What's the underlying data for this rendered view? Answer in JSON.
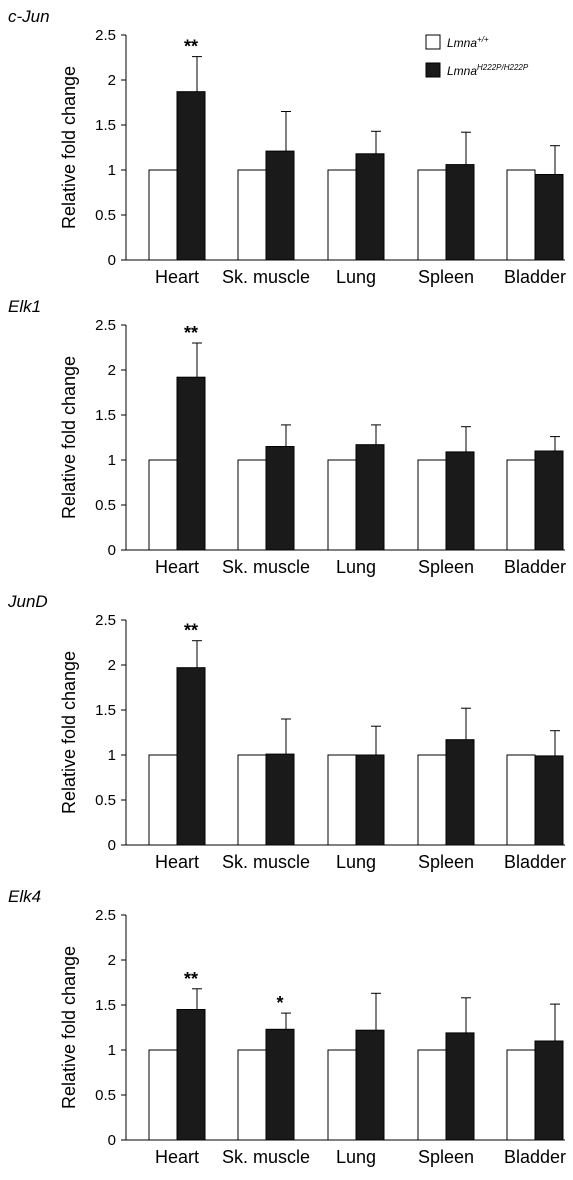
{
  "legend": {
    "series": [
      {
        "base": "Lmna",
        "sup": "+/+",
        "color": "#ffffff"
      },
      {
        "base": "Lmna",
        "sup": "H222P/H222P",
        "color": "#1a1a1a"
      }
    ]
  },
  "chart_data": [
    {
      "type": "bar",
      "title": "c-Jun",
      "ylabel": "Relative fold change",
      "ylim": [
        0,
        2.5
      ],
      "yticks": [
        "0",
        "0.5",
        "1",
        "1.5",
        "2",
        "2.5"
      ],
      "categories": [
        "Heart",
        "Sk. muscle",
        "Lung",
        "Spleen",
        "Bladder"
      ],
      "series": [
        {
          "name": "Lmna+/+",
          "values": [
            1,
            1,
            1,
            1,
            1
          ]
        },
        {
          "name": "LmnaH222P/H222P",
          "values": [
            1.87,
            1.21,
            1.18,
            1.06,
            0.95
          ],
          "errors": [
            0.39,
            0.44,
            0.25,
            0.36,
            0.32
          ]
        }
      ],
      "significance": [
        "**",
        "",
        "",
        "",
        ""
      ]
    },
    {
      "type": "bar",
      "title": "Elk1",
      "ylabel": "Relative fold change",
      "ylim": [
        0,
        2.5
      ],
      "yticks": [
        "0",
        "0.5",
        "1",
        "1.5",
        "2",
        "2.5"
      ],
      "categories": [
        "Heart",
        "Sk. muscle",
        "Lung",
        "Spleen",
        "Bladder"
      ],
      "series": [
        {
          "name": "Lmna+/+",
          "values": [
            1,
            1,
            1,
            1,
            1
          ]
        },
        {
          "name": "LmnaH222P/H222P",
          "values": [
            1.92,
            1.15,
            1.17,
            1.09,
            1.1
          ],
          "errors": [
            0.38,
            0.24,
            0.22,
            0.28,
            0.16
          ]
        }
      ],
      "significance": [
        "**",
        "",
        "",
        "",
        ""
      ]
    },
    {
      "type": "bar",
      "title": "JunD",
      "ylabel": "Relative fold change",
      "ylim": [
        0,
        2.5
      ],
      "yticks": [
        "0",
        "0.5",
        "1",
        "1.5",
        "2",
        "2.5"
      ],
      "categories": [
        "Heart",
        "Sk. muscle",
        "Lung",
        "Spleen",
        "Bladder"
      ],
      "series": [
        {
          "name": "Lmna+/+",
          "values": [
            1,
            1,
            1,
            1,
            1
          ]
        },
        {
          "name": "LmnaH222P/H222P",
          "values": [
            1.97,
            1.01,
            1.0,
            1.17,
            0.99
          ],
          "errors": [
            0.3,
            0.39,
            0.32,
            0.35,
            0.28
          ]
        }
      ],
      "significance": [
        "**",
        "",
        "",
        "",
        ""
      ]
    },
    {
      "type": "bar",
      "title": "Elk4",
      "ylabel": "Relative fold change",
      "ylim": [
        0,
        2.5
      ],
      "yticks": [
        "0",
        "0.5",
        "1",
        "1.5",
        "2",
        "2.5"
      ],
      "categories": [
        "Heart",
        "Sk. muscle",
        "Lung",
        "Spleen",
        "Bladder"
      ],
      "series": [
        {
          "name": "Lmna+/+",
          "values": [
            1,
            1,
            1,
            1,
            1
          ]
        },
        {
          "name": "LmnaH222P/H222P",
          "values": [
            1.45,
            1.23,
            1.22,
            1.19,
            1.1
          ],
          "errors": [
            0.23,
            0.18,
            0.41,
            0.39,
            0.41
          ]
        }
      ],
      "significance": [
        "**",
        "*",
        "",
        "",
        ""
      ]
    }
  ]
}
